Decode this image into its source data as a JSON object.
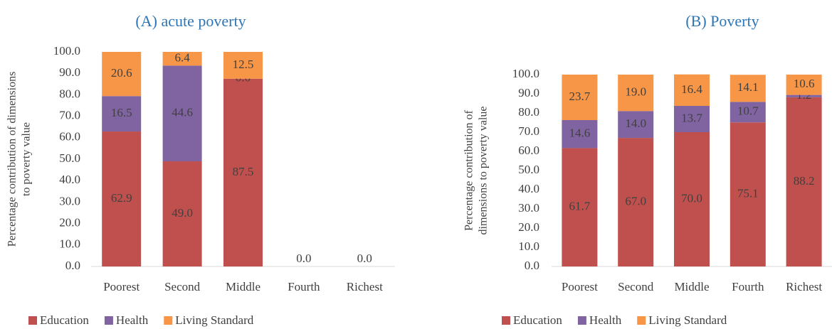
{
  "chart_data": [
    {
      "type": "bar",
      "stacked": true,
      "title": "(A) acute poverty",
      "ylabel": [
        "Percentage contribution of dimensions",
        "to poverty value"
      ],
      "categories": [
        "Poorest",
        "Second",
        "Middle",
        "Fourth",
        "Richest"
      ],
      "series": [
        {
          "name": "Education",
          "color": "#c0504d",
          "values": [
            62.9,
            49.0,
            87.5,
            0,
            0
          ],
          "value_labels": [
            "62.9",
            "49.0",
            "87.5",
            "0.0",
            "0.0"
          ]
        },
        {
          "name": "Health",
          "color": "#8064a2",
          "values": [
            16.5,
            44.6,
            0,
            null,
            null
          ],
          "value_labels": [
            "16.5",
            "44.6",
            "0.0",
            null,
            null
          ]
        },
        {
          "name": "Living Standard",
          "color": "#f79646",
          "values": [
            20.6,
            6.4,
            12.5,
            null,
            null
          ],
          "value_labels": [
            "20.6",
            "6.4",
            "12.5",
            null,
            null
          ]
        }
      ],
      "ylim": [
        0,
        100
      ],
      "yticks": [
        {
          "value": 0,
          "label": "0.0"
        },
        {
          "value": 10,
          "label": "10.0"
        },
        {
          "value": 20,
          "label": "20.0"
        },
        {
          "value": 30,
          "label": "30.0"
        },
        {
          "value": 40,
          "label": "40.0"
        },
        {
          "value": 50,
          "label": "50.0"
        },
        {
          "value": 60,
          "label": "60.0"
        },
        {
          "value": 70,
          "label": "70.0"
        },
        {
          "value": 80,
          "label": "80.0"
        },
        {
          "value": 90,
          "label": "90.0"
        },
        {
          "value": 100,
          "label": "100.0"
        }
      ],
      "grid": false,
      "legend": "bottom"
    },
    {
      "type": "bar",
      "stacked": true,
      "title": "(B) Poverty",
      "ylabel": [
        "Percentage contribution of",
        "dimensions to poverty value"
      ],
      "categories": [
        "Poorest",
        "Second",
        "Middle",
        "Fourth",
        "Richest"
      ],
      "series": [
        {
          "name": "Education",
          "color": "#c0504d",
          "values": [
            61.7,
            67.0,
            70.0,
            75.1,
            88.2
          ],
          "value_labels": [
            "61.7",
            "67.0",
            "70.0",
            "75.1",
            "88.2"
          ]
        },
        {
          "name": "Health",
          "color": "#8064a2",
          "values": [
            14.6,
            14.0,
            13.7,
            10.7,
            1.2
          ],
          "value_labels": [
            "14.6",
            "14.0",
            "13.7",
            "10.7",
            "1.2"
          ]
        },
        {
          "name": "Living Standard",
          "color": "#f79646",
          "values": [
            23.7,
            19.0,
            16.4,
            14.1,
            10.6
          ],
          "value_labels": [
            "23.7",
            "19.0",
            "16.4",
            "14.1",
            "10.6"
          ]
        }
      ],
      "ylim": [
        0,
        100
      ],
      "yticks": [
        {
          "value": 0,
          "label": "0.0"
        },
        {
          "value": 10,
          "label": "10.0"
        },
        {
          "value": 20,
          "label": "20.0"
        },
        {
          "value": 30,
          "label": "30.0"
        },
        {
          "value": 40,
          "label": "40.0"
        },
        {
          "value": 50,
          "label": "50.0"
        },
        {
          "value": 60,
          "label": "60.0"
        },
        {
          "value": 70,
          "label": "70.0"
        },
        {
          "value": 80,
          "label": "80.0"
        },
        {
          "value": 90,
          "label": "90.0"
        },
        {
          "value": 100,
          "label": "100.0"
        }
      ],
      "grid": false,
      "legend": "bottom"
    }
  ]
}
